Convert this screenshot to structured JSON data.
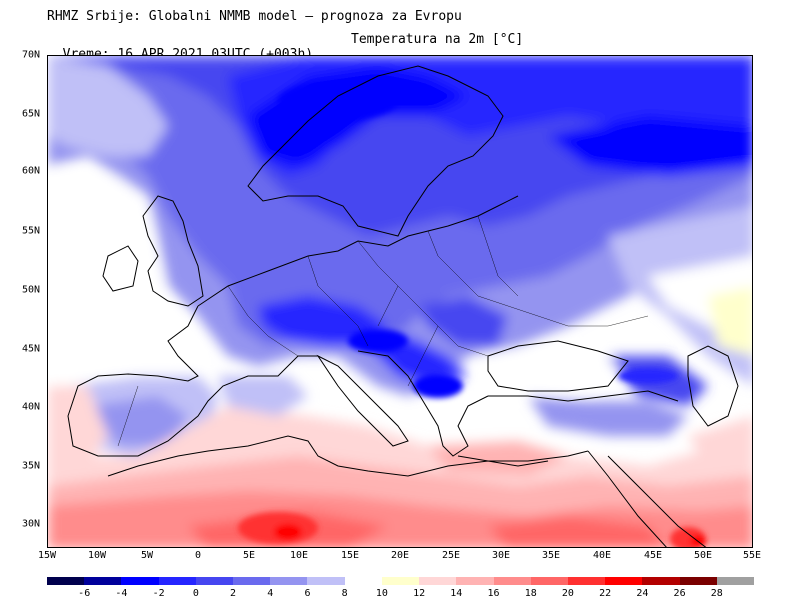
{
  "header": {
    "line1": "RHMZ Srbije: Globalni NMMB model — prognoza za Evropu",
    "line2_time": "Vreme: 16 APR 2021 03UTC (+003h)",
    "line2_param": "Temperatura na 2m [°C]"
  },
  "axes": {
    "lat_labels": [
      "70N",
      "65N",
      "60N",
      "55N",
      "50N",
      "45N",
      "40N",
      "35N",
      "30N"
    ],
    "lon_labels": [
      "15W",
      "10W",
      "5W",
      "0",
      "5E",
      "10E",
      "15E",
      "20E",
      "25E",
      "30E",
      "35E",
      "40E",
      "45E",
      "50E",
      "55E"
    ]
  },
  "legend": {
    "colors": [
      "#00004d",
      "#00009b",
      "#0000ff",
      "#2525ff",
      "#4646f0",
      "#6a6aee",
      "#9494f0",
      "#c0c0f7",
      "#ffffff",
      "#ffffcc",
      "#ffd7d7",
      "#ffb3b3",
      "#ff8c8c",
      "#ff6666",
      "#ff3030",
      "#ff0000",
      "#b30000",
      "#7a0000",
      "#a0a0a0"
    ],
    "labels": [
      "-6",
      "-4",
      "-2",
      "0",
      "2",
      "4",
      "6",
      "8",
      "10",
      "12",
      "14",
      "16",
      "18",
      "20",
      "22",
      "24",
      "26",
      "28"
    ]
  }
}
